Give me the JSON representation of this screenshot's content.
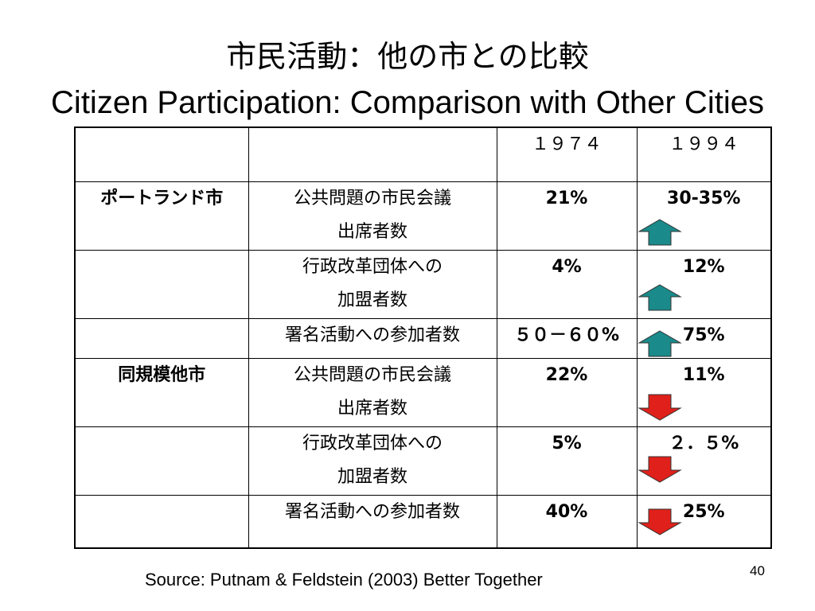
{
  "slide": {
    "title_jp": "市民活動：他の市との比較",
    "title_en": "Citizen Participation: Comparison with Other Cities",
    "source": "Source: Putnam & Feldstein (2003) Better Together",
    "page_number": "40"
  },
  "table": {
    "header": {
      "blank1": "",
      "blank2": "",
      "y1974": "１９７４",
      "y1994": "１９９４"
    },
    "rows": [
      {
        "city": "ポートランド市",
        "item": "公共問題の市民会議出席者数",
        "item_line1": "公共問題の市民会議",
        "item_line2": "出席者数",
        "v1974": "21%",
        "v1994": "30-35%",
        "trend": "up"
      },
      {
        "city": "",
        "item": "行政改革団体への加盟者数",
        "item_line1": "行政改革団体への",
        "item_line2": "加盟者数",
        "v1974": "4%",
        "v1994": "12%",
        "trend": "up"
      },
      {
        "city": "",
        "item": "署名活動への参加者数",
        "item_line1": "署名活動への参加者数",
        "item_line2": "",
        "v1974": "５０－６０%",
        "v1994": "75%",
        "trend": "up"
      },
      {
        "city": "同規模他市",
        "item": "公共問題の市民会議出席者数",
        "item_line1": "公共問題の市民会議",
        "item_line2": "出席者数",
        "v1974": "22%",
        "v1994": "11%",
        "trend": "down"
      },
      {
        "city": "",
        "item": "行政改革団体への加盟者数",
        "item_line1": "行政改革団体への",
        "item_line2": "加盟者数",
        "v1974": "5%",
        "v1994": "２．５%",
        "trend": "down"
      },
      {
        "city": "",
        "item": "署名活動への参加者数",
        "item_line1": "署名活動への参加者数",
        "item_line2": "",
        "v1974": "40%",
        "v1994": "25%",
        "trend": "down"
      }
    ]
  },
  "colors": {
    "up_arrow": "#1a8a8a",
    "down_arrow": "#e0201a",
    "border": "#000000"
  }
}
